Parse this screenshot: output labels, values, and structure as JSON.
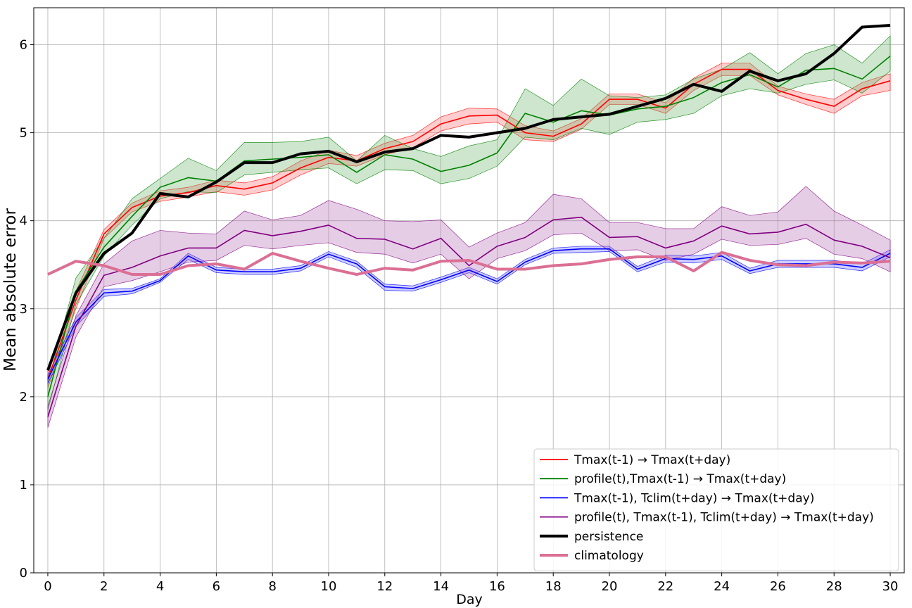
{
  "chart_data": {
    "type": "line",
    "title": "",
    "xlabel": "Day",
    "ylabel": "Mean absolute error",
    "xlim": [
      -0.5,
      30.5
    ],
    "ylim": [
      0,
      6.42
    ],
    "xticks": [
      0,
      2,
      4,
      6,
      8,
      10,
      12,
      14,
      16,
      18,
      20,
      22,
      24,
      26,
      28,
      30
    ],
    "yticks": [
      0,
      1,
      2,
      3,
      4,
      5,
      6
    ],
    "grid": true,
    "legend_position": "lower-right",
    "x": [
      0,
      1,
      2,
      3,
      4,
      5,
      6,
      7,
      8,
      9,
      10,
      11,
      12,
      13,
      14,
      15,
      16,
      17,
      18,
      19,
      20,
      21,
      22,
      23,
      24,
      25,
      26,
      27,
      28,
      29,
      30
    ],
    "series": [
      {
        "name": "Tmax(t-1) → Tmax(t+day)",
        "color": "#ff0000",
        "band_color": "#ff6666",
        "values": [
          2.2,
          3.1,
          3.85,
          4.15,
          4.28,
          4.32,
          4.4,
          4.36,
          4.43,
          4.6,
          4.72,
          4.68,
          4.82,
          4.9,
          5.1,
          5.19,
          5.2,
          5.0,
          4.96,
          5.1,
          5.38,
          5.38,
          5.28,
          5.55,
          5.72,
          5.72,
          5.48,
          5.38,
          5.3,
          5.5,
          5.59
        ],
        "lower": [
          2.1,
          3.0,
          3.8,
          4.1,
          4.22,
          4.27,
          4.33,
          4.29,
          4.35,
          4.52,
          4.65,
          4.62,
          4.75,
          4.83,
          5.02,
          5.1,
          5.12,
          4.92,
          4.9,
          5.04,
          5.32,
          5.32,
          5.22,
          5.48,
          5.65,
          5.65,
          5.43,
          5.32,
          5.22,
          5.42,
          5.48
        ],
        "upper": [
          2.3,
          3.2,
          3.9,
          4.2,
          4.34,
          4.38,
          4.46,
          4.43,
          4.5,
          4.68,
          4.8,
          4.74,
          4.88,
          4.97,
          5.18,
          5.28,
          5.27,
          5.08,
          5.02,
          5.16,
          5.44,
          5.44,
          5.34,
          5.62,
          5.79,
          5.79,
          5.53,
          5.44,
          5.38,
          5.57,
          5.67
        ]
      },
      {
        "name": "profile(t),Tmax(t-1) → Tmax(t+day)",
        "color": "#008000",
        "band_color": "#66b266",
        "values": [
          2.0,
          3.2,
          3.7,
          4.05,
          4.38,
          4.49,
          4.45,
          4.68,
          4.7,
          4.72,
          4.75,
          4.55,
          4.75,
          4.7,
          4.56,
          4.63,
          4.77,
          5.22,
          5.12,
          5.25,
          5.2,
          5.27,
          5.3,
          5.4,
          5.57,
          5.66,
          5.52,
          5.71,
          5.73,
          5.61,
          5.87
        ],
        "lower": [
          1.85,
          3.05,
          3.6,
          3.95,
          4.25,
          4.33,
          4.32,
          4.52,
          4.55,
          4.58,
          4.6,
          4.42,
          4.58,
          4.57,
          4.42,
          4.48,
          4.62,
          4.95,
          4.92,
          5.05,
          4.98,
          5.12,
          5.15,
          5.22,
          5.42,
          5.5,
          5.45,
          5.55,
          5.6,
          5.45,
          5.7
        ],
        "upper": [
          2.15,
          3.35,
          3.8,
          4.25,
          4.48,
          4.71,
          4.57,
          4.89,
          4.89,
          4.9,
          4.95,
          4.68,
          4.97,
          4.82,
          4.73,
          4.85,
          4.92,
          5.5,
          5.31,
          5.61,
          5.42,
          5.4,
          5.43,
          5.61,
          5.72,
          5.91,
          5.67,
          5.9,
          6.0,
          5.79,
          6.1
        ]
      },
      {
        "name": "Tmax(t-1), Tclim(t+day) → Tmax(t+day)",
        "color": "#0000ff",
        "band_color": "#6666ff",
        "values": [
          2.2,
          2.85,
          3.18,
          3.2,
          3.32,
          3.6,
          3.44,
          3.42,
          3.42,
          3.46,
          3.62,
          3.51,
          3.25,
          3.23,
          3.33,
          3.44,
          3.31,
          3.53,
          3.66,
          3.68,
          3.68,
          3.45,
          3.57,
          3.56,
          3.6,
          3.43,
          3.51,
          3.51,
          3.51,
          3.47,
          3.63
        ],
        "lower": [
          2.15,
          2.8,
          3.14,
          3.17,
          3.3,
          3.56,
          3.41,
          3.39,
          3.39,
          3.43,
          3.59,
          3.47,
          3.21,
          3.2,
          3.3,
          3.41,
          3.28,
          3.5,
          3.63,
          3.64,
          3.65,
          3.42,
          3.53,
          3.52,
          3.56,
          3.4,
          3.47,
          3.47,
          3.47,
          3.43,
          3.59
        ],
        "upper": [
          2.25,
          2.9,
          3.22,
          3.23,
          3.34,
          3.63,
          3.47,
          3.45,
          3.45,
          3.49,
          3.65,
          3.54,
          3.28,
          3.26,
          3.36,
          3.47,
          3.34,
          3.56,
          3.69,
          3.71,
          3.71,
          3.48,
          3.61,
          3.6,
          3.64,
          3.46,
          3.55,
          3.55,
          3.55,
          3.51,
          3.67
        ]
      },
      {
        "name": "profile(t), Tmax(t-1), Tclim(t+day) → Tmax(t+day)",
        "color": "#800080",
        "band_color": "#b266b2",
        "values": [
          1.77,
          2.8,
          3.38,
          3.47,
          3.6,
          3.69,
          3.69,
          3.89,
          3.83,
          3.88,
          3.95,
          3.8,
          3.79,
          3.68,
          3.8,
          3.49,
          3.71,
          3.81,
          4.01,
          4.04,
          3.81,
          3.82,
          3.69,
          3.77,
          3.94,
          3.85,
          3.87,
          3.96,
          3.78,
          3.71,
          3.58
        ],
        "lower": [
          1.65,
          2.68,
          3.25,
          3.32,
          3.42,
          3.53,
          3.55,
          3.72,
          3.68,
          3.72,
          3.75,
          3.64,
          3.62,
          3.52,
          3.62,
          3.34,
          3.57,
          3.66,
          3.84,
          3.86,
          3.66,
          3.67,
          3.55,
          3.62,
          3.79,
          3.72,
          3.73,
          3.8,
          3.62,
          3.57,
          3.42
        ],
        "upper": [
          1.89,
          2.92,
          3.51,
          3.77,
          3.89,
          3.86,
          3.85,
          4.11,
          4.01,
          4.06,
          4.23,
          4.13,
          4.0,
          3.99,
          4.01,
          3.7,
          3.86,
          3.98,
          4.3,
          4.25,
          3.98,
          3.98,
          3.91,
          3.91,
          4.16,
          4.06,
          4.1,
          4.39,
          4.11,
          3.95,
          3.78
        ]
      },
      {
        "name": "persistence",
        "color": "#000000",
        "values": [
          2.3,
          3.18,
          3.63,
          3.86,
          4.31,
          4.27,
          4.44,
          4.66,
          4.66,
          4.76,
          4.79,
          4.67,
          4.78,
          4.82,
          4.97,
          4.95,
          5.0,
          5.05,
          5.15,
          5.18,
          5.21,
          5.3,
          5.39,
          5.55,
          5.47,
          5.7,
          5.59,
          5.67,
          5.9,
          6.2,
          6.22
        ]
      },
      {
        "name": "climatology",
        "color": "#db6f94",
        "values": [
          3.39,
          3.54,
          3.49,
          3.39,
          3.39,
          3.49,
          3.51,
          3.45,
          3.63,
          3.54,
          3.46,
          3.39,
          3.46,
          3.44,
          3.54,
          3.55,
          3.45,
          3.45,
          3.49,
          3.51,
          3.56,
          3.59,
          3.59,
          3.43,
          3.64,
          3.55,
          3.5,
          3.49,
          3.53,
          3.52,
          3.54
        ]
      }
    ]
  }
}
